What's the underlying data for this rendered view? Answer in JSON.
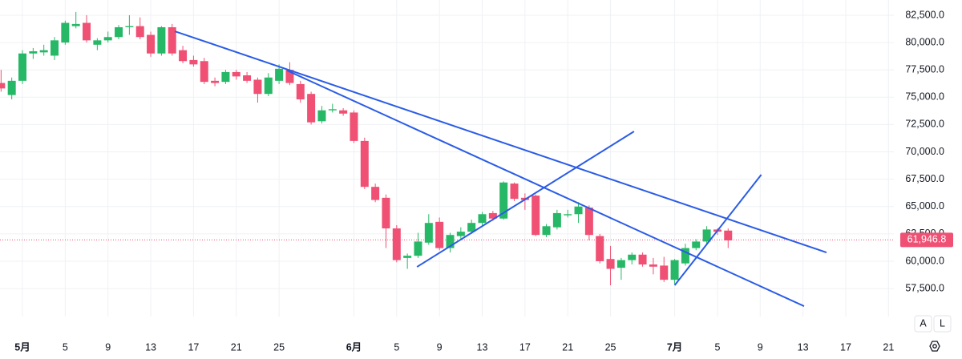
{
  "chart_data": {
    "type": "candlestick",
    "xlim": [
      -2.1,
      81.5
    ],
    "ylim": [
      54940,
      83890
    ],
    "xticks": [
      {
        "value": 0,
        "label": "5月"
      },
      {
        "value": 4,
        "label": "5"
      },
      {
        "value": 8,
        "label": "9"
      },
      {
        "value": 12,
        "label": "13"
      },
      {
        "value": 16,
        "label": "17"
      },
      {
        "value": 20,
        "label": "21"
      },
      {
        "value": 24,
        "label": "25"
      },
      {
        "value": 31,
        "label": "6月"
      },
      {
        "value": 35,
        "label": "5"
      },
      {
        "value": 39,
        "label": "9"
      },
      {
        "value": 43,
        "label": "13"
      },
      {
        "value": 47,
        "label": "17"
      },
      {
        "value": 51,
        "label": "21"
      },
      {
        "value": 55,
        "label": "25"
      },
      {
        "value": 61,
        "label": "7月"
      },
      {
        "value": 65,
        "label": "5"
      },
      {
        "value": 69,
        "label": "9"
      },
      {
        "value": 73,
        "label": "13"
      },
      {
        "value": 77,
        "label": "17"
      },
      {
        "value": 81,
        "label": "21"
      }
    ],
    "yticks": [
      {
        "value": 57500,
        "label": "57,500.0"
      },
      {
        "value": 60000,
        "label": "60,000.0"
      },
      {
        "value": 62500,
        "label": "62,500.0"
      },
      {
        "value": 65000,
        "label": "65,000.0"
      },
      {
        "value": 67500,
        "label": "67,500.0"
      },
      {
        "value": 70000,
        "label": "70,000.0"
      },
      {
        "value": 72500,
        "label": "72,500.0"
      },
      {
        "value": 75000,
        "label": "75,000.0"
      },
      {
        "value": 77500,
        "label": "77,500.0"
      },
      {
        "value": 80000,
        "label": "80,000.0"
      },
      {
        "value": 82500,
        "label": "82,500.0"
      }
    ],
    "grid": true,
    "up_color": "#26b866",
    "down_color": "#ef5074",
    "x": [
      -2,
      -1,
      0,
      1,
      2,
      3,
      4,
      5,
      6,
      7,
      8,
      9,
      10,
      11,
      12,
      13,
      14,
      15,
      16,
      17,
      18,
      19,
      20,
      21,
      22,
      23,
      24,
      25,
      26,
      27,
      28,
      29,
      30,
      31,
      32,
      33,
      34,
      35,
      36,
      37,
      38,
      39,
      40,
      41,
      42,
      43,
      44,
      45,
      46,
      47,
      48,
      49,
      50,
      51,
      52,
      53,
      54,
      55,
      56,
      57,
      58,
      59,
      60,
      61,
      62,
      63,
      64,
      65,
      66
    ],
    "open": [
      76300,
      75200,
      76500,
      79000,
      79100,
      78800,
      80000,
      81500,
      81800,
      79800,
      80200,
      80500,
      81400,
      81500,
      80700,
      79000,
      81400,
      79300,
      78400,
      78300,
      76500,
      76400,
      77300,
      77000,
      76600,
      75300,
      76500,
      77500,
      76200,
      75300,
      72800,
      73800,
      73800,
      73600,
      71000,
      66800,
      65800,
      63000,
      60300,
      60500,
      61700,
      63600,
      61200,
      62300,
      62700,
      63500,
      64400,
      63900,
      67100,
      65800,
      66000,
      62400,
      63100,
      64200,
      64300,
      64900,
      62300,
      60200,
      59400,
      60100,
      60600,
      59700,
      59600,
      58300,
      59800,
      61200,
      61800,
      62900,
      62800
    ],
    "high": [
      77500,
      76800,
      79300,
      79500,
      79800,
      80500,
      82000,
      82800,
      82500,
      80400,
      81000,
      81600,
      82500,
      82300,
      81000,
      81500,
      81700,
      79700,
      78800,
      78600,
      76800,
      77500,
      77500,
      77300,
      76800,
      77200,
      78000,
      78200,
      76500,
      75500,
      74200,
      74400,
      74000,
      73800,
      71300,
      67100,
      66100,
      63300,
      60700,
      62600,
      64300,
      64000,
      62600,
      63100,
      63800,
      64500,
      64600,
      67300,
      67200,
      66200,
      66100,
      63400,
      64700,
      64700,
      65400,
      65100,
      62500,
      61400,
      60300,
      60800,
      60800,
      60300,
      60400,
      60200,
      61600,
      62000,
      63200,
      63000,
      63000
    ],
    "low": [
      75500,
      74800,
      76200,
      78500,
      78800,
      78400,
      79800,
      81300,
      80000,
      79300,
      80000,
      80300,
      80700,
      80300,
      78700,
      78800,
      78800,
      78100,
      77800,
      76200,
      76000,
      76200,
      76600,
      76300,
      74500,
      75100,
      76200,
      76100,
      74500,
      72500,
      72600,
      73600,
      73300,
      70800,
      66600,
      65400,
      61200,
      59900,
      59300,
      60300,
      61500,
      61000,
      60800,
      62000,
      62500,
      63300,
      63700,
      63800,
      65500,
      64700,
      62300,
      62200,
      62900,
      64000,
      63500,
      61900,
      59800,
      57800,
      58300,
      59700,
      59500,
      58800,
      58100,
      57900,
      59600,
      61000,
      61600,
      62400,
      61200
    ],
    "close": [
      75800,
      76500,
      79000,
      79200,
      79300,
      80200,
      81800,
      81700,
      80200,
      80200,
      80500,
      81400,
      81500,
      80500,
      79000,
      81400,
      79000,
      78300,
      78000,
      76400,
      76300,
      77300,
      76900,
      76500,
      75300,
      76800,
      77600,
      76300,
      74800,
      72700,
      73800,
      73900,
      73500,
      71000,
      66800,
      65600,
      63000,
      60100,
      60500,
      61800,
      63500,
      61200,
      62400,
      62700,
      63500,
      64300,
      63900,
      67200,
      65700,
      65600,
      62400,
      63200,
      64400,
      64300,
      65000,
      62400,
      60000,
      59300,
      60100,
      60600,
      59700,
      59500,
      58300,
      60100,
      61200,
      61800,
      62900,
      62700,
      61900
    ],
    "trendline_color": "#2b5ce6",
    "trendlines": [
      {
        "x": [
          14.25,
          75.2
        ],
        "y": [
          81030,
          60800
        ]
      },
      {
        "x": [
          24.75,
          73.1
        ],
        "y": [
          77440,
          55890
        ]
      },
      {
        "x": [
          36.9,
          57.2
        ],
        "y": [
          59480,
          71870
        ]
      },
      {
        "x": [
          61,
          69.1
        ],
        "y": [
          57800,
          67910
        ]
      }
    ],
    "last_price": {
      "value": 61946.8,
      "label": "61,946.8"
    }
  },
  "controls": [
    "A",
    "L"
  ]
}
